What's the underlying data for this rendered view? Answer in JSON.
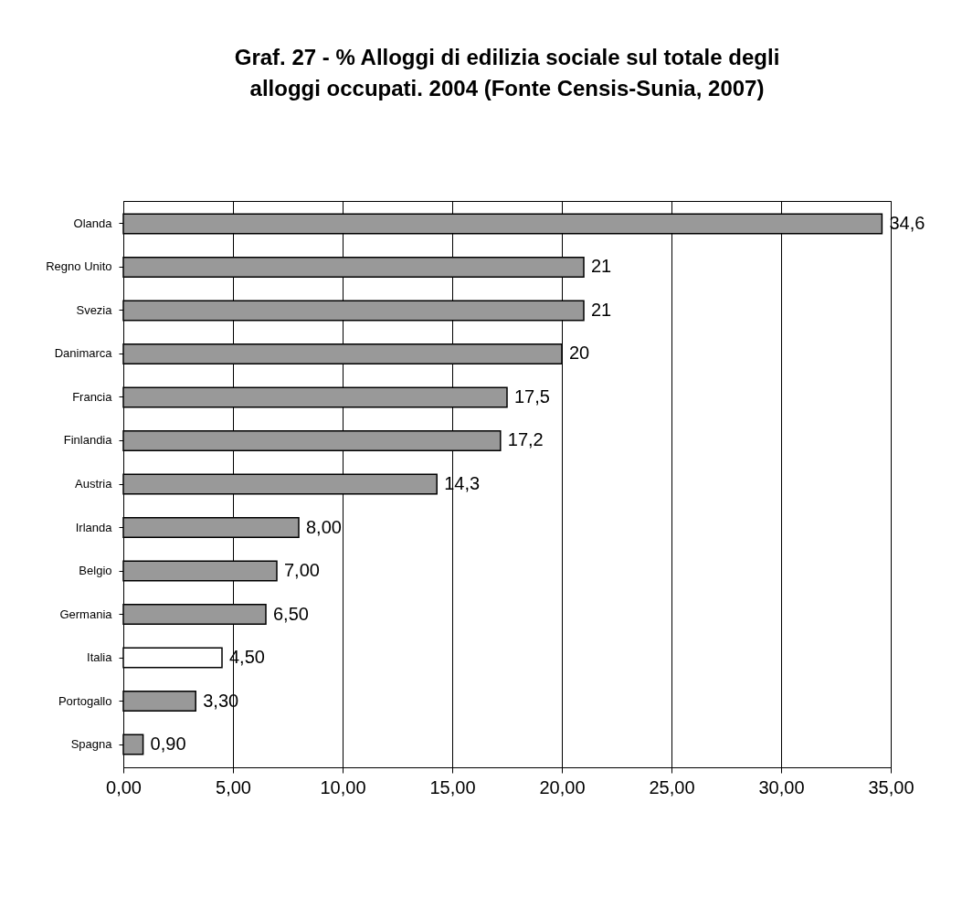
{
  "chart_data": {
    "type": "bar",
    "orientation": "horizontal",
    "title": "Graf. 27  - %  Alloggi di edilizia sociale sul totale degli\nalloggi occupati. 2004 (Fonte Censis-Sunia, 2007)",
    "categories": [
      "Olanda",
      "Regno Unito",
      "Svezia",
      "Danimarca",
      "Francia",
      "Finlandia",
      "Austria",
      "Irlanda",
      "Belgio",
      "Germania",
      "Italia",
      "Portogallo",
      "Spagna"
    ],
    "values": [
      34.6,
      21,
      21,
      20,
      17.5,
      17.2,
      14.3,
      8,
      7,
      6.5,
      4.5,
      3.3,
      0.9
    ],
    "value_labels": [
      "34,6",
      "21",
      "21",
      "20",
      "17,5",
      "17,2",
      "14,3",
      "8,00",
      "7,00",
      "6,50",
      "4,50",
      "3,30",
      "0,90"
    ],
    "colors": [
      "#999999",
      "#999999",
      "#999999",
      "#999999",
      "#999999",
      "#999999",
      "#999999",
      "#999999",
      "#999999",
      "#999999",
      "#ffffff",
      "#999999",
      "#999999"
    ],
    "xlim": [
      0,
      35
    ],
    "xticks": [
      {
        "value": 0,
        "label": "0,00"
      },
      {
        "value": 5,
        "label": "5,00"
      },
      {
        "value": 10,
        "label": "10,00"
      },
      {
        "value": 15,
        "label": "15,00"
      },
      {
        "value": 20,
        "label": "20,00"
      },
      {
        "value": 25,
        "label": "25,00"
      },
      {
        "value": 30,
        "label": "30,00"
      },
      {
        "value": 35,
        "label": "35,00"
      }
    ],
    "grid": "x"
  }
}
